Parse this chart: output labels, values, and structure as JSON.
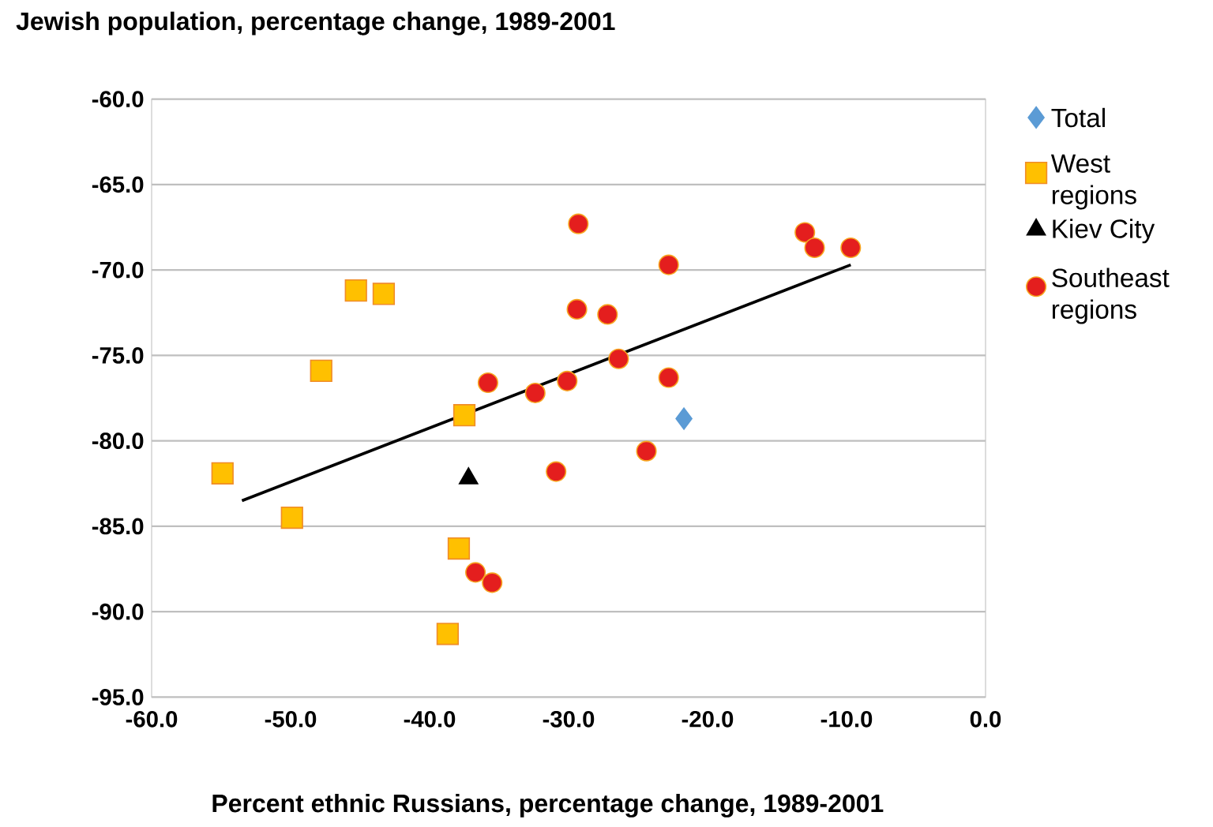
{
  "chart_data": {
    "type": "scatter",
    "title": "Jewish population, percentage change, 1989-2001",
    "xlabel": "Percent ethnic Russians, percentage change, 1989-2001",
    "xlim": [
      -60,
      0
    ],
    "ylim": [
      -95,
      -60
    ],
    "xticks": [
      {
        "value": -60,
        "label": "-60.0"
      },
      {
        "value": -50,
        "label": "-50.0"
      },
      {
        "value": -40,
        "label": "-40.0"
      },
      {
        "value": -30,
        "label": "-30.0"
      },
      {
        "value": -20,
        "label": "-20.0"
      },
      {
        "value": -10,
        "label": "-10.0"
      },
      {
        "value": 0,
        "label": "0.0"
      }
    ],
    "yticks": [
      {
        "value": -60,
        "label": "-60.0"
      },
      {
        "value": -65,
        "label": "-65.0"
      },
      {
        "value": -70,
        "label": "-70.0"
      },
      {
        "value": -75,
        "label": "-75.0"
      },
      {
        "value": -80,
        "label": "-80.0"
      },
      {
        "value": -85,
        "label": "-85.0"
      },
      {
        "value": -90,
        "label": "-90.0"
      },
      {
        "value": -95,
        "label": "-95.0"
      }
    ],
    "grid": "y",
    "legend": "right",
    "series": [
      {
        "name": "Total",
        "color": "#5b9bd5",
        "marker": "diamond",
        "x": [
          -21.7
        ],
        "values": [
          -78.7
        ]
      },
      {
        "name": "West regions",
        "color": "#ffc000",
        "marker": "square",
        "x": [
          -54.9,
          -49.9,
          -45.3,
          -43.3,
          -47.8,
          -37.5,
          -37.9,
          -38.7
        ],
        "values": [
          -81.9,
          -84.5,
          -71.2,
          -71.4,
          -75.9,
          -78.5,
          -86.3,
          -91.3
        ]
      },
      {
        "name": "Kiev City",
        "color": "#000000",
        "marker": "triangle",
        "x": [
          -37.2
        ],
        "values": [
          -82.2
        ]
      },
      {
        "name": "Southeast regions",
        "color": "#e41e1e",
        "marker": "circle",
        "x": [
          -29.3,
          -22.8,
          -13.0,
          -12.3,
          -9.7,
          -29.4,
          -27.2,
          -26.4,
          -22.8,
          -30.1,
          -32.4,
          -35.8,
          -24.4,
          -30.9,
          -36.7,
          -35.5
        ],
        "values": [
          -67.3,
          -69.7,
          -67.8,
          -68.7,
          -68.7,
          -72.3,
          -72.6,
          -75.2,
          -76.3,
          -76.5,
          -77.2,
          -76.6,
          -80.6,
          -81.8,
          -87.7,
          -88.3
        ]
      },
      {
        "type": "line",
        "color": "#000000",
        "marker": "none",
        "x": [
          -53.5,
          -9.7
        ],
        "values": [
          -83.5,
          -69.7
        ]
      }
    ]
  }
}
